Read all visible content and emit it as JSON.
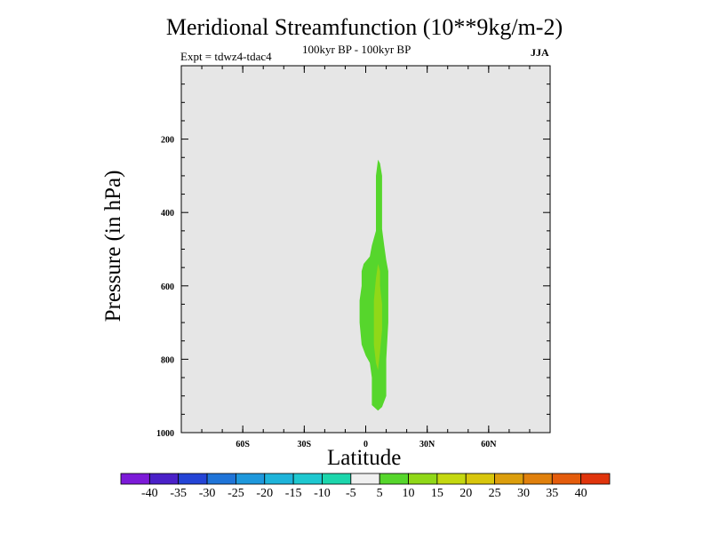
{
  "chart_data": {
    "type": "heatmap",
    "title": "Meridional Streamfunction (10**9kg/m-2)",
    "subtitle": "100kyr BP - 100kyr BP",
    "left_label": "Expt = tdwz4-tdac4",
    "right_label": "JJA",
    "xlabel": "Latitude",
    "ylabel": "Pressure (in hPa)",
    "xlim": [
      -90,
      90
    ],
    "ylim": [
      1000,
      0
    ],
    "x_ticks": [
      {
        "value": -60,
        "label": "60S"
      },
      {
        "value": -30,
        "label": "30S"
      },
      {
        "value": 0,
        "label": "0"
      },
      {
        "value": 30,
        "label": "30N"
      },
      {
        "value": 60,
        "label": "60N"
      }
    ],
    "y_ticks": [
      {
        "value": 200,
        "label": "200"
      },
      {
        "value": 400,
        "label": "400"
      },
      {
        "value": 600,
        "label": "600"
      },
      {
        "value": 800,
        "label": "800"
      },
      {
        "value": 1000,
        "label": "1000"
      }
    ],
    "background_color": "#e6e6e6",
    "colorbar": {
      "levels": [
        "-40",
        "-35",
        "-30",
        "-25",
        "-20",
        "-15",
        "-10",
        "-5",
        "5",
        "10",
        "15",
        "20",
        "25",
        "30",
        "35",
        "40"
      ],
      "colors": [
        "#7c1ad8",
        "#4a20c8",
        "#2444d6",
        "#1f74d8",
        "#1e98dc",
        "#1eb4da",
        "#1ec8d0",
        "#1cd6ac",
        "#f0f0f0",
        "#56d62c",
        "#90d818",
        "#c4d810",
        "#d8c60c",
        "#dc9e0c",
        "#e0800c",
        "#e45c0c",
        "#e0340c"
      ]
    },
    "contours": [
      {
        "level": "5 to 10",
        "color": "#56d62c",
        "points": [
          [
            6,
            256
          ],
          [
            7,
            266
          ],
          [
            8,
            300
          ],
          [
            8,
            380
          ],
          [
            8,
            445
          ],
          [
            9,
            490
          ],
          [
            10,
            530
          ],
          [
            11,
            560
          ],
          [
            11,
            620
          ],
          [
            11,
            700
          ],
          [
            10,
            800
          ],
          [
            10,
            850
          ],
          [
            10,
            900
          ],
          [
            8,
            930
          ],
          [
            6,
            940
          ],
          [
            3,
            925
          ],
          [
            3,
            850
          ],
          [
            2,
            810
          ],
          [
            0,
            790
          ],
          [
            -2,
            760
          ],
          [
            -3,
            700
          ],
          [
            -3,
            640
          ],
          [
            -2,
            600
          ],
          [
            -2,
            560
          ],
          [
            -1,
            540
          ],
          [
            2,
            520
          ],
          [
            3,
            490
          ],
          [
            5,
            450
          ],
          [
            5,
            400
          ],
          [
            5,
            300
          ]
        ]
      },
      {
        "level": "10 to 15",
        "color": "#90d818",
        "points": [
          [
            6,
            540
          ],
          [
            7,
            560
          ],
          [
            7,
            600
          ],
          [
            8,
            650
          ],
          [
            8,
            720
          ],
          [
            7,
            780
          ],
          [
            6,
            830
          ],
          [
            5,
            810
          ],
          [
            4,
            760
          ],
          [
            4,
            700
          ],
          [
            4,
            640
          ],
          [
            5,
            580
          ]
        ]
      }
    ]
  }
}
